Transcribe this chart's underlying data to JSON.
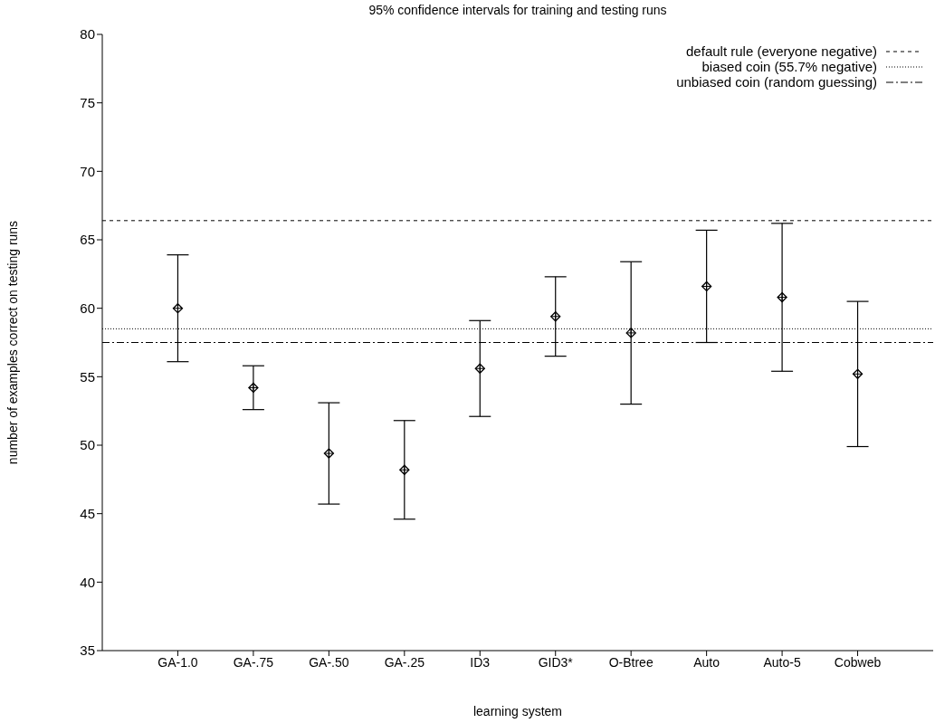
{
  "chart_data": {
    "type": "scatter",
    "title": "95% confidence intervals for training and testing runs",
    "xlabel": "learning system",
    "ylabel": "number of examples correct on testing runs",
    "categories": [
      "GA-1.0",
      "GA-.75",
      "GA-.50",
      "GA-.25",
      "ID3",
      "GID3*",
      "O-Btree",
      "Auto",
      "Auto-5",
      "Cobweb"
    ],
    "values": [
      60.0,
      54.2,
      49.4,
      48.2,
      55.6,
      59.4,
      58.2,
      61.6,
      60.8,
      55.2
    ],
    "errors": [
      [
        56.1,
        63.9
      ],
      [
        52.6,
        55.8
      ],
      [
        45.7,
        53.1
      ],
      [
        44.6,
        51.8
      ],
      [
        52.1,
        59.1
      ],
      [
        56.5,
        62.3
      ],
      [
        53.0,
        63.4
      ],
      [
        57.5,
        65.7
      ],
      [
        55.4,
        66.2
      ],
      [
        49.9,
        60.5
      ]
    ],
    "color": "#000000",
    "marker": "diamond",
    "ylim": [
      35,
      80
    ],
    "yticks": [
      35,
      40,
      45,
      50,
      55,
      60,
      65,
      70,
      75,
      80
    ],
    "legend": "top right",
    "ref_lines": [
      {
        "axis": "y",
        "value": 66.4,
        "label": "default rule (everyone negative)",
        "line_style": "dashed",
        "color": "#000000"
      },
      {
        "axis": "y",
        "value": 58.5,
        "label": "biased coin (55.7% negative)",
        "line_style": "dotted",
        "color": "#000000"
      },
      {
        "axis": "y",
        "value": 57.5,
        "label": "unbiased coin (random guessing)",
        "line_style": "dashdot",
        "color": "#000000"
      }
    ]
  }
}
